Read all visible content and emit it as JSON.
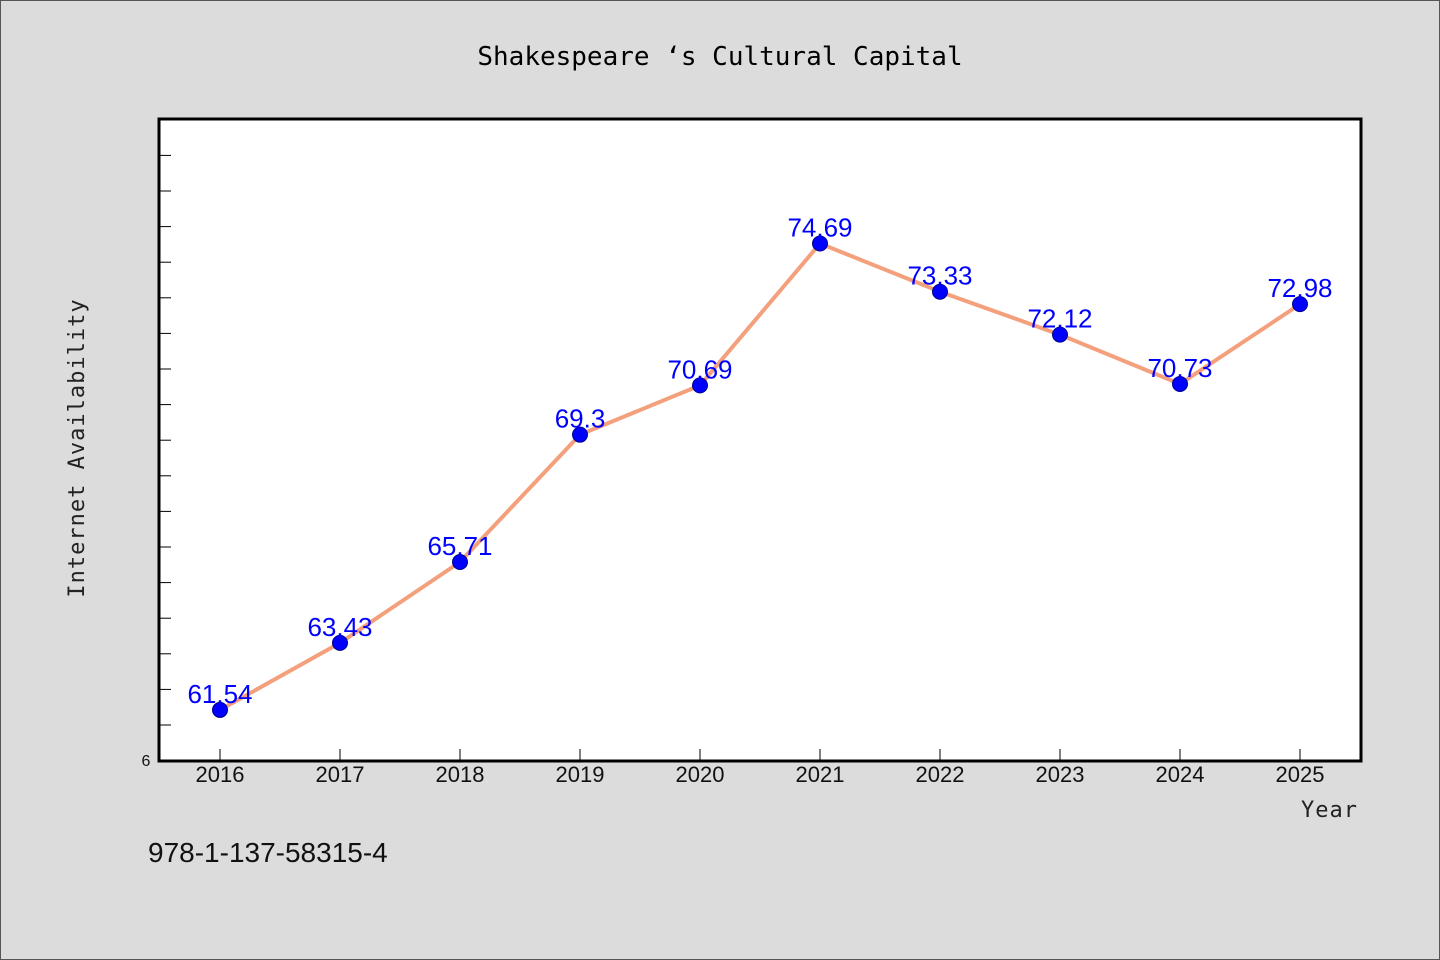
{
  "chart_data": {
    "type": "line",
    "title": "Shakespeare ‘s Cultural Capital",
    "xlabel": "Year",
    "ylabel": "Internet Availability",
    "categories": [
      "2016",
      "2017",
      "2018",
      "2019",
      "2020",
      "2021",
      "2022",
      "2023",
      "2024",
      "2025"
    ],
    "series": [
      {
        "values": [
          61.54,
          63.43,
          65.71,
          69.3,
          70.69,
          74.69,
          73.33,
          72.12,
          70.73,
          72.98
        ],
        "labels": [
          "61.54",
          "63.43",
          "65.71",
          "69.3",
          "70.69",
          "74.69",
          "73.33",
          "72.12",
          "70.73",
          "72.98"
        ]
      }
    ],
    "ylim": [
      60.1,
      78.2
    ],
    "y_tick_label": "6",
    "grid": false,
    "legend": false,
    "line_color": "#f4a07c",
    "marker_color": "#0000ff",
    "label_color": "#0000ff"
  },
  "footer": {
    "isbn": "978-1-137-58315-4"
  }
}
